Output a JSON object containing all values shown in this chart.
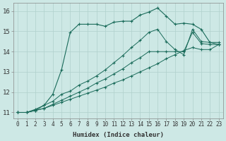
{
  "xlabel": "Humidex (Indice chaleur)",
  "xlim": [
    -0.5,
    23.5
  ],
  "ylim": [
    10.7,
    16.4
  ],
  "xticks": [
    0,
    1,
    2,
    3,
    4,
    5,
    6,
    7,
    8,
    9,
    10,
    11,
    12,
    13,
    14,
    15,
    16,
    17,
    18,
    19,
    20,
    21,
    22,
    23
  ],
  "yticks": [
    11,
    12,
    13,
    14,
    15,
    16
  ],
  "bg_color": "#cde8e5",
  "grid_color": "#b0d0cc",
  "line_color": "#1a6b5a",
  "series": [
    {
      "x": [
        0,
        1,
        2,
        3,
        4,
        5,
        6,
        7,
        8,
        9,
        10,
        11,
        12,
        13,
        14,
        15,
        16,
        17,
        18,
        19,
        20,
        21,
        22,
        23
      ],
      "y": [
        11.0,
        11.0,
        11.1,
        11.2,
        11.35,
        11.5,
        11.65,
        11.8,
        11.95,
        12.1,
        12.25,
        12.45,
        12.6,
        12.8,
        13.0,
        13.2,
        13.4,
        13.65,
        13.85,
        14.05,
        14.2,
        14.1,
        14.1,
        14.35
      ],
      "marker": "+",
      "markersize": 2.5,
      "linestyle": "-",
      "linewidth": 0.7
    },
    {
      "x": [
        0,
        1,
        2,
        3,
        4,
        5,
        6,
        7,
        8,
        9,
        10,
        11,
        12,
        13,
        14,
        15,
        16,
        17,
        18,
        19,
        20,
        21,
        22,
        23
      ],
      "y": [
        11.0,
        11.0,
        11.1,
        11.2,
        11.4,
        11.6,
        11.8,
        12.0,
        12.2,
        12.45,
        12.65,
        12.9,
        13.15,
        13.45,
        13.7,
        14.0,
        14.0,
        14.0,
        14.0,
        14.0,
        14.95,
        14.4,
        14.35,
        14.35
      ],
      "marker": "+",
      "markersize": 2.5,
      "linestyle": "-",
      "linewidth": 0.7
    },
    {
      "x": [
        0,
        1,
        2,
        3,
        4,
        5,
        6,
        7,
        8,
        9,
        10,
        11,
        12,
        13,
        14,
        15,
        16,
        17,
        18,
        19,
        20,
        21,
        22,
        23
      ],
      "y": [
        11.0,
        11.0,
        11.15,
        11.35,
        11.9,
        13.1,
        14.95,
        15.35,
        15.35,
        15.35,
        15.25,
        15.45,
        15.5,
        15.5,
        15.8,
        15.95,
        16.15,
        15.75,
        15.35,
        15.4,
        15.35,
        15.1,
        14.45,
        14.45
      ],
      "marker": "+",
      "markersize": 3,
      "linestyle": "-",
      "linewidth": 0.8
    },
    {
      "x": [
        0,
        1,
        2,
        3,
        4,
        5,
        6,
        7,
        8,
        9,
        10,
        11,
        12,
        13,
        14,
        15,
        16,
        17,
        18,
        19,
        20,
        21,
        22,
        23
      ],
      "y": [
        11.0,
        11.0,
        11.1,
        11.35,
        11.55,
        11.9,
        12.05,
        12.35,
        12.55,
        12.8,
        13.1,
        13.45,
        13.8,
        14.2,
        14.55,
        14.95,
        15.1,
        14.5,
        14.1,
        13.85,
        15.1,
        14.5,
        14.45,
        14.35
      ],
      "marker": "+",
      "markersize": 2.5,
      "linestyle": "-",
      "linewidth": 0.7
    }
  ]
}
